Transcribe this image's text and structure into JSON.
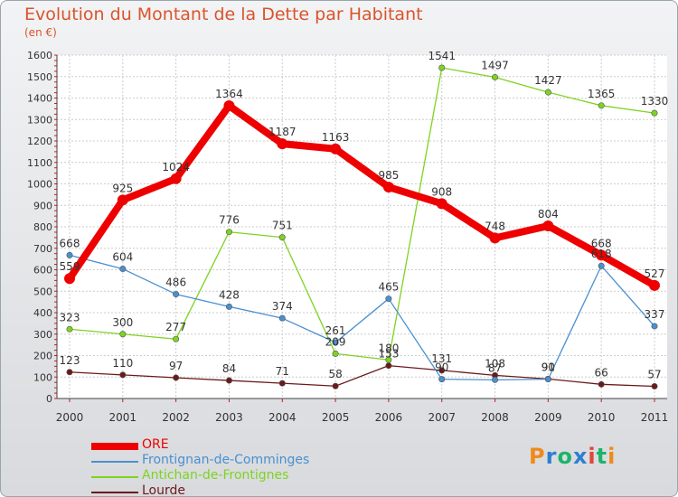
{
  "title": "Evolution du Montant de la Dette par Habitant",
  "unit": "(en €)",
  "logo": "Proxiti",
  "chart_data": {
    "type": "line",
    "x": [
      2000,
      2001,
      2002,
      2003,
      2004,
      2005,
      2006,
      2007,
      2008,
      2009,
      2010,
      2011
    ],
    "ylim": [
      0,
      1600
    ],
    "yticks": [
      0,
      100,
      200,
      300,
      400,
      500,
      600,
      700,
      800,
      900,
      1000,
      1100,
      1200,
      1300,
      1400,
      1500,
      1600
    ],
    "grid": true,
    "legend": "bottom-left",
    "series": [
      {
        "name": "ORE",
        "color": "#ee0000",
        "values": [
          559,
          925,
          1024,
          1364,
          1187,
          1163,
          985,
          908,
          748,
          804,
          668,
          527
        ]
      },
      {
        "name": "Frontignan-de-Comminges",
        "color": "#4a90d0",
        "values": [
          668,
          604,
          486,
          428,
          374,
          261,
          465,
          90,
          87,
          90,
          618,
          337
        ]
      },
      {
        "name": "Antichan-de-Frontignes",
        "color": "#7ed321",
        "values": [
          323,
          300,
          277,
          776,
          751,
          209,
          180,
          1541,
          1497,
          1427,
          1365,
          1330
        ]
      },
      {
        "name": "Lourde",
        "color": "#6b1a1a",
        "values": [
          123,
          110,
          97,
          84,
          71,
          58,
          153,
          131,
          108,
          91,
          66,
          57
        ]
      }
    ]
  }
}
